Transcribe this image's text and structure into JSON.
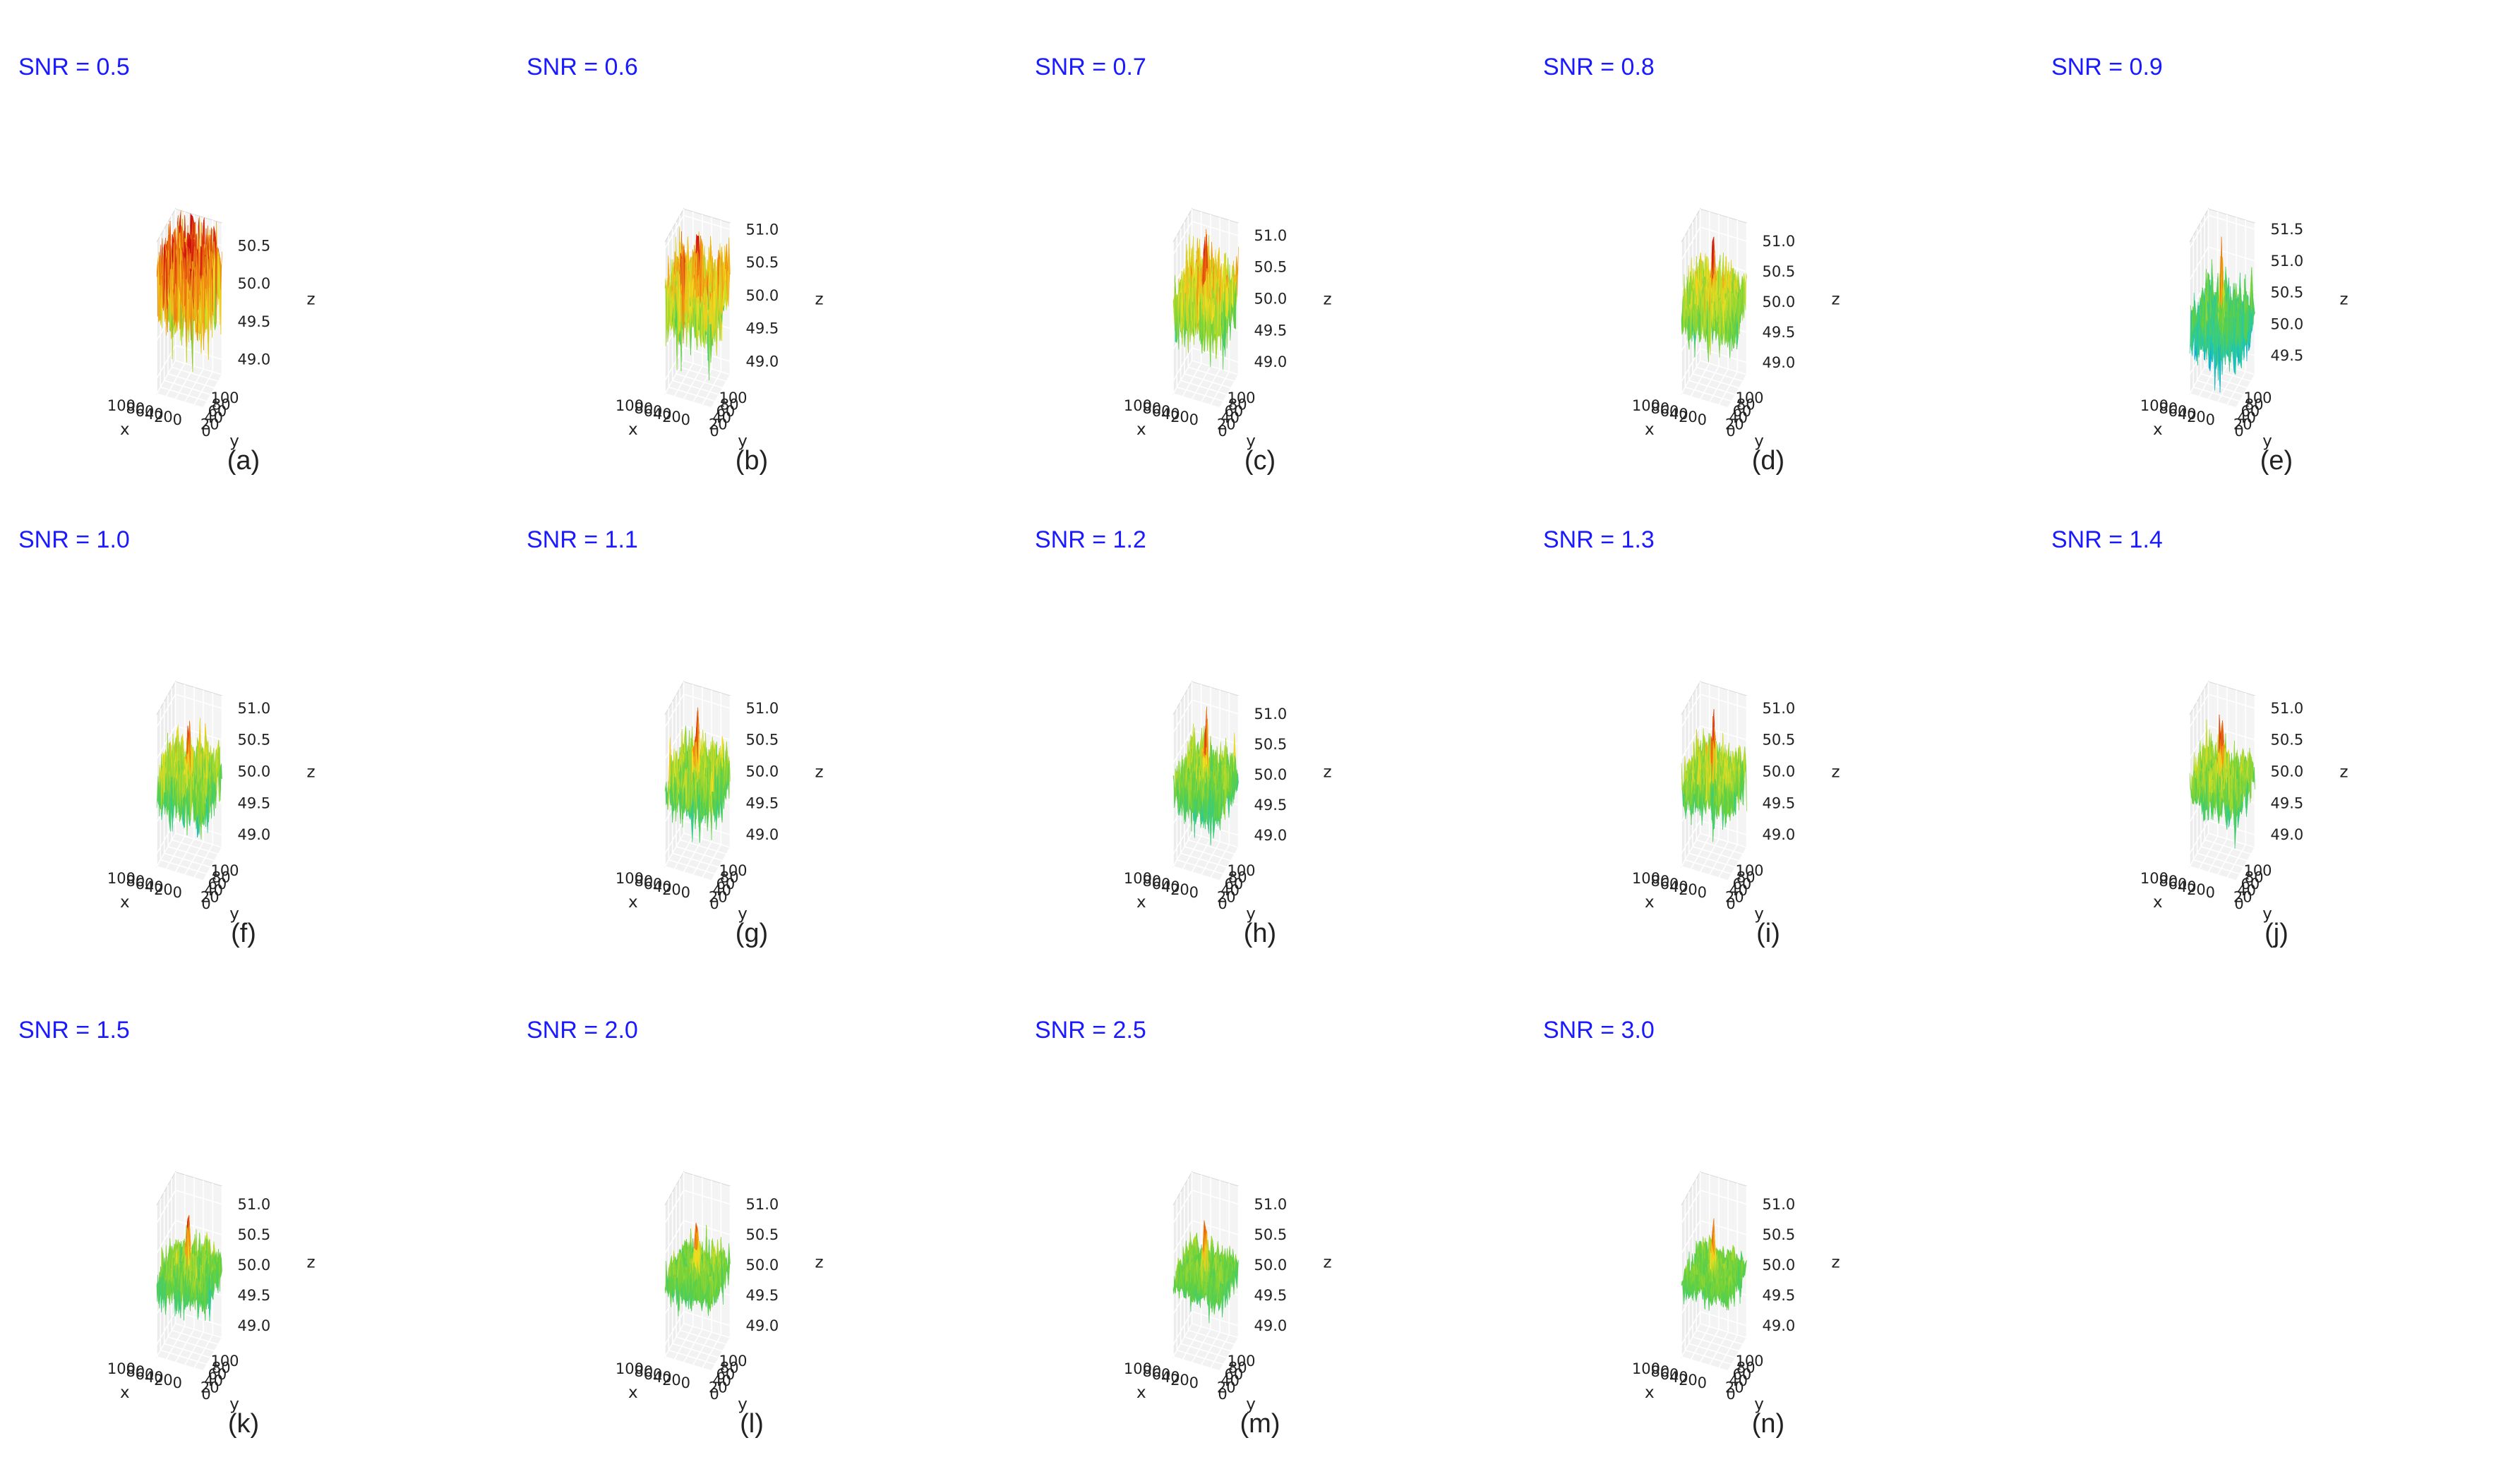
{
  "figure": {
    "colors": {
      "snr_text": "#1a1aff",
      "colormap": [
        "#1030c8",
        "#0aa0e0",
        "#20c8b0",
        "#60d040",
        "#f0e020",
        "#f08010",
        "#d01010"
      ]
    }
  },
  "chart_data": [
    {
      "type": "surface3d",
      "panel": "(a)",
      "title": "SNR = 0.5",
      "snr": 0.5,
      "xlabel": "x",
      "ylabel": "y",
      "zlabel": "z",
      "x_ticks": [
        "0",
        "20",
        "40",
        "60",
        "80",
        "100"
      ],
      "y_ticks": [
        "0",
        "20",
        "40",
        "60",
        "80",
        "100"
      ],
      "z_ticks": [
        "49.0",
        "49.5",
        "50.0",
        "50.5"
      ],
      "xlim": [
        0,
        100
      ],
      "ylim": [
        0,
        100
      ],
      "zlim": [
        48.8,
        50.8
      ]
    },
    {
      "type": "surface3d",
      "panel": "(b)",
      "title": "SNR = 0.6",
      "snr": 0.6,
      "xlabel": "x",
      "ylabel": "y",
      "zlabel": "z",
      "x_ticks": [
        "0",
        "20",
        "40",
        "60",
        "80",
        "100"
      ],
      "y_ticks": [
        "0",
        "20",
        "40",
        "60",
        "80",
        "100"
      ],
      "z_ticks": [
        "49.0",
        "49.5",
        "50.0",
        "50.5",
        "51.0"
      ],
      "xlim": [
        0,
        100
      ],
      "ylim": [
        0,
        100
      ],
      "zlim": [
        48.8,
        51.1
      ]
    },
    {
      "type": "surface3d",
      "panel": "(c)",
      "title": "SNR = 0.7",
      "snr": 0.7,
      "xlabel": "x",
      "ylabel": "y",
      "zlabel": "z",
      "x_ticks": [
        "0",
        "20",
        "40",
        "60",
        "80",
        "100"
      ],
      "y_ticks": [
        "0",
        "20",
        "40",
        "60",
        "80",
        "100"
      ],
      "z_ticks": [
        "49.0",
        "49.5",
        "50.0",
        "50.5",
        "51.0"
      ],
      "xlim": [
        0,
        100
      ],
      "ylim": [
        0,
        100
      ],
      "zlim": [
        48.8,
        51.2
      ]
    },
    {
      "type": "surface3d",
      "panel": "(d)",
      "title": "SNR = 0.8",
      "snr": 0.8,
      "xlabel": "x",
      "ylabel": "y",
      "zlabel": "z",
      "x_ticks": [
        "0",
        "20",
        "40",
        "60",
        "80",
        "100"
      ],
      "y_ticks": [
        "0",
        "20",
        "40",
        "60",
        "80",
        "100"
      ],
      "z_ticks": [
        "49.0",
        "49.5",
        "50.0",
        "50.5",
        "51.0"
      ],
      "xlim": [
        0,
        100
      ],
      "ylim": [
        0,
        100
      ],
      "zlim": [
        48.8,
        51.3
      ]
    },
    {
      "type": "surface3d",
      "panel": "(e)",
      "title": "SNR = 0.9",
      "snr": 0.9,
      "xlabel": "x",
      "ylabel": "y",
      "zlabel": "z",
      "x_ticks": [
        "0",
        "20",
        "40",
        "60",
        "80",
        "100"
      ],
      "y_ticks": [
        "0",
        "20",
        "40",
        "60",
        "80",
        "100"
      ],
      "z_ticks": [
        "49.5",
        "50.0",
        "50.5",
        "51.0",
        "51.5"
      ],
      "xlim": [
        0,
        100
      ],
      "ylim": [
        0,
        100
      ],
      "zlim": [
        49.2,
        51.6
      ]
    },
    {
      "type": "surface3d",
      "panel": "(f)",
      "title": "SNR = 1.0",
      "snr": 1.0,
      "xlabel": "x",
      "ylabel": "y",
      "zlabel": "z",
      "x_ticks": [
        "0",
        "20",
        "40",
        "60",
        "80",
        "100"
      ],
      "y_ticks": [
        "0",
        "20",
        "40",
        "60",
        "80",
        "100"
      ],
      "z_ticks": [
        "49.0",
        "49.5",
        "50.0",
        "50.5",
        "51.0"
      ],
      "xlim": [
        0,
        100
      ],
      "ylim": [
        0,
        100
      ],
      "zlim": [
        48.8,
        51.2
      ]
    },
    {
      "type": "surface3d",
      "panel": "(g)",
      "title": "SNR = 1.1",
      "snr": 1.1,
      "xlabel": "x",
      "ylabel": "y",
      "zlabel": "z",
      "x_ticks": [
        "0",
        "20",
        "40",
        "60",
        "80",
        "100"
      ],
      "y_ticks": [
        "0",
        "20",
        "40",
        "60",
        "80",
        "100"
      ],
      "z_ticks": [
        "49.0",
        "49.5",
        "50.0",
        "50.5",
        "51.0"
      ],
      "xlim": [
        0,
        100
      ],
      "ylim": [
        0,
        100
      ],
      "zlim": [
        48.8,
        51.2
      ]
    },
    {
      "type": "surface3d",
      "panel": "(h)",
      "title": "SNR = 1.2",
      "snr": 1.2,
      "xlabel": "x",
      "ylabel": "y",
      "zlabel": "z",
      "x_ticks": [
        "0",
        "20",
        "40",
        "60",
        "80",
        "100"
      ],
      "y_ticks": [
        "0",
        "20",
        "40",
        "60",
        "80",
        "100"
      ],
      "z_ticks": [
        "49.0",
        "49.5",
        "50.0",
        "50.5",
        "51.0"
      ],
      "xlim": [
        0,
        100
      ],
      "ylim": [
        0,
        100
      ],
      "zlim": [
        48.8,
        51.3
      ]
    },
    {
      "type": "surface3d",
      "panel": "(i)",
      "title": "SNR = 1.3",
      "snr": 1.3,
      "xlabel": "x",
      "ylabel": "y",
      "zlabel": "z",
      "x_ticks": [
        "0",
        "20",
        "40",
        "60",
        "80",
        "100"
      ],
      "y_ticks": [
        "0",
        "20",
        "40",
        "60",
        "80",
        "100"
      ],
      "z_ticks": [
        "49.0",
        "49.5",
        "50.0",
        "50.5",
        "51.0"
      ],
      "xlim": [
        0,
        100
      ],
      "ylim": [
        0,
        100
      ],
      "zlim": [
        48.8,
        51.2
      ]
    },
    {
      "type": "surface3d",
      "panel": "(j)",
      "title": "SNR = 1.4",
      "snr": 1.4,
      "xlabel": "x",
      "ylabel": "y",
      "zlabel": "z",
      "x_ticks": [
        "0",
        "20",
        "40",
        "60",
        "80",
        "100"
      ],
      "y_ticks": [
        "0",
        "20",
        "40",
        "60",
        "80",
        "100"
      ],
      "z_ticks": [
        "49.0",
        "49.5",
        "50.0",
        "50.5",
        "51.0"
      ],
      "xlim": [
        0,
        100
      ],
      "ylim": [
        0,
        100
      ],
      "zlim": [
        48.8,
        51.2
      ]
    },
    {
      "type": "surface3d",
      "panel": "(k)",
      "title": "SNR = 1.5",
      "snr": 1.5,
      "xlabel": "x",
      "ylabel": "y",
      "zlabel": "z",
      "x_ticks": [
        "0",
        "20",
        "40",
        "60",
        "80",
        "100"
      ],
      "y_ticks": [
        "0",
        "20",
        "40",
        "60",
        "80",
        "100"
      ],
      "z_ticks": [
        "49.0",
        "49.5",
        "50.0",
        "50.5",
        "51.0"
      ],
      "xlim": [
        0,
        100
      ],
      "ylim": [
        0,
        100
      ],
      "zlim": [
        48.8,
        51.3
      ]
    },
    {
      "type": "surface3d",
      "panel": "(l)",
      "title": "SNR = 2.0",
      "snr": 2.0,
      "xlabel": "x",
      "ylabel": "y",
      "zlabel": "z",
      "x_ticks": [
        "0",
        "20",
        "40",
        "60",
        "80",
        "100"
      ],
      "y_ticks": [
        "0",
        "20",
        "40",
        "60",
        "80",
        "100"
      ],
      "z_ticks": [
        "49.0",
        "49.5",
        "50.0",
        "50.5",
        "51.0"
      ],
      "xlim": [
        0,
        100
      ],
      "ylim": [
        0,
        100
      ],
      "zlim": [
        48.8,
        51.3
      ]
    },
    {
      "type": "surface3d",
      "panel": "(m)",
      "title": "SNR = 2.5",
      "snr": 2.5,
      "xlabel": "x",
      "ylabel": "y",
      "zlabel": "z",
      "x_ticks": [
        "0",
        "20",
        "40",
        "60",
        "80",
        "100"
      ],
      "y_ticks": [
        "0",
        "20",
        "40",
        "60",
        "80",
        "100"
      ],
      "z_ticks": [
        "49.0",
        "49.5",
        "50.0",
        "50.5",
        "51.0"
      ],
      "xlim": [
        0,
        100
      ],
      "ylim": [
        0,
        100
      ],
      "zlim": [
        48.8,
        51.3
      ]
    },
    {
      "type": "surface3d",
      "panel": "(n)",
      "title": "SNR = 3.0",
      "snr": 3.0,
      "xlabel": "x",
      "ylabel": "y",
      "zlabel": "z",
      "x_ticks": [
        "0",
        "20",
        "40",
        "60",
        "80",
        "100"
      ],
      "y_ticks": [
        "0",
        "20",
        "40",
        "60",
        "80",
        "100"
      ],
      "z_ticks": [
        "49.0",
        "49.5",
        "50.0",
        "50.5",
        "51.0"
      ],
      "xlim": [
        0,
        100
      ],
      "ylim": [
        0,
        100
      ],
      "zlim": [
        48.8,
        51.3
      ]
    }
  ]
}
